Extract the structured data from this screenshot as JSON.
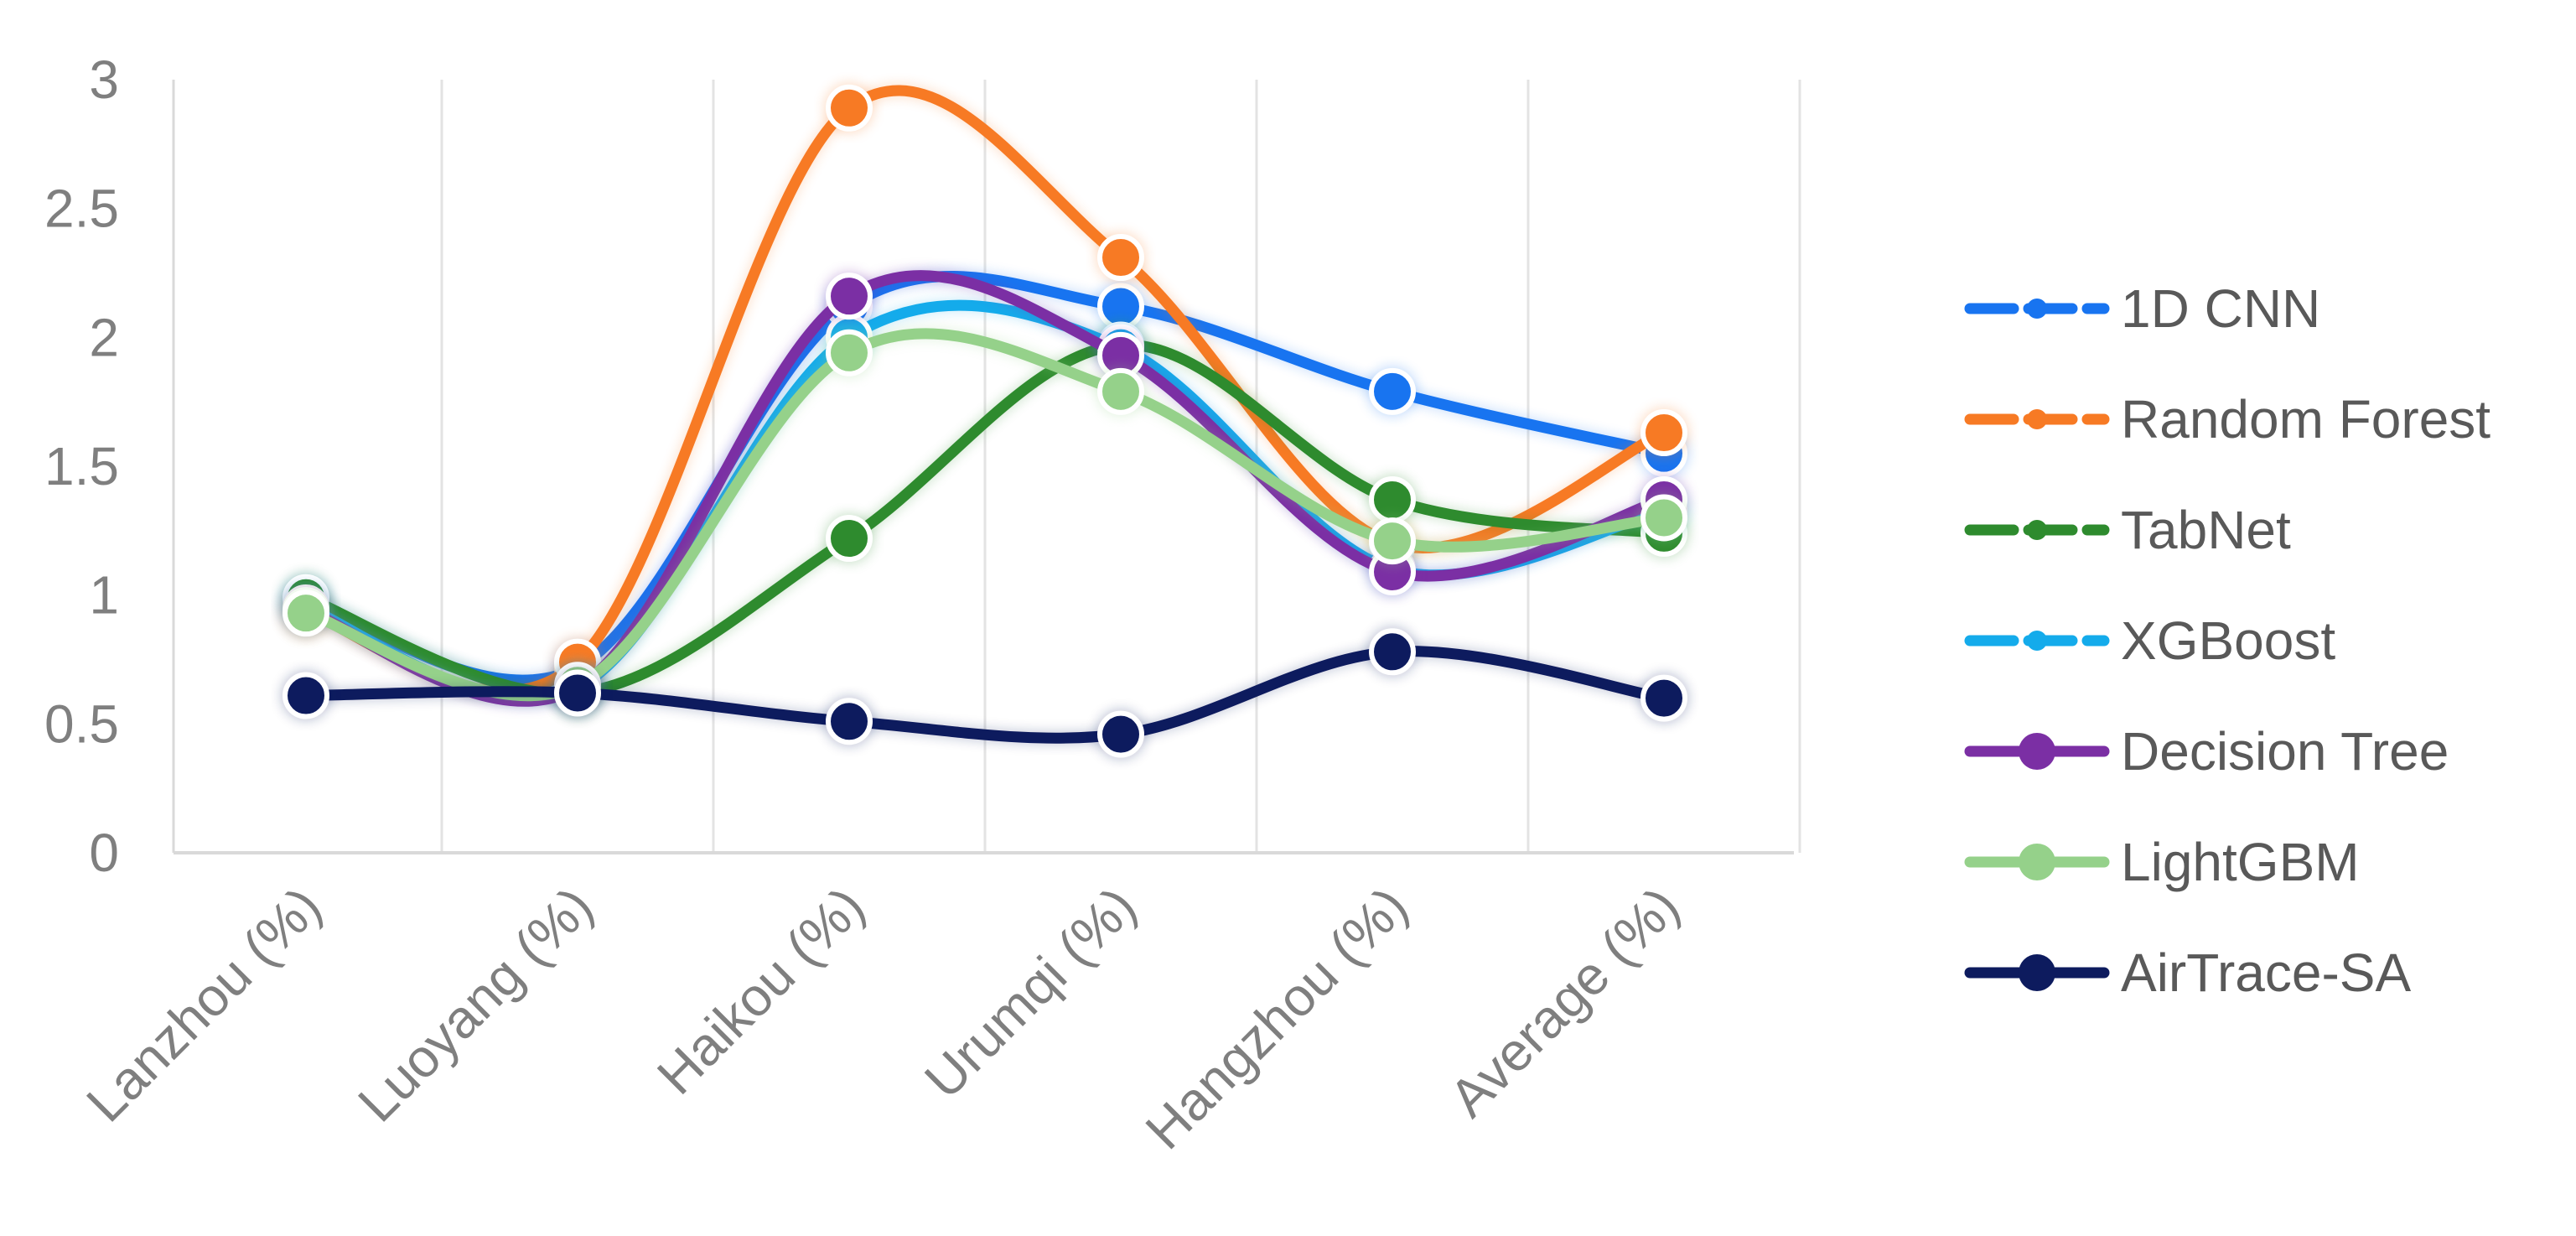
{
  "chart_data": {
    "type": "line",
    "title": "",
    "xlabel": "",
    "ylabel": "",
    "categories": [
      "Lanzhou (%)",
      "Luoyang (%)",
      "Haikou (%)",
      "Urumqi (%)",
      "Hangzhou (%)",
      "Average (%)"
    ],
    "ylim": [
      0,
      3
    ],
    "yticks": [
      "0",
      "0.5",
      "1",
      "1.5",
      "2",
      "2.5",
      "3"
    ],
    "ytick_values": [
      0,
      0.5,
      1,
      1.5,
      2,
      2.5,
      3
    ],
    "grid": "vertical",
    "legend_position": "right",
    "series": [
      {
        "name": "1D CNN",
        "color": "#1874F0",
        "dashed": true,
        "values": [
          0.98,
          0.72,
          2.12,
          2.12,
          1.79,
          1.55
        ]
      },
      {
        "name": "Random Forest",
        "color": "#F77A24",
        "dashed": true,
        "values": [
          0.93,
          0.74,
          2.89,
          2.31,
          1.2,
          1.63
        ]
      },
      {
        "name": "TabNet",
        "color": "#2E8B2E",
        "dashed": true,
        "values": [
          0.99,
          0.62,
          1.22,
          1.97,
          1.37,
          1.24
        ]
      },
      {
        "name": "XGBoost",
        "color": "#14ABEB",
        "dashed": true,
        "values": [
          0.95,
          0.64,
          2.0,
          1.96,
          1.1,
          1.33
        ]
      },
      {
        "name": "Decision Tree",
        "color": "#7B2FA4",
        "dashed": false,
        "values": [
          0.94,
          0.64,
          2.16,
          1.93,
          1.09,
          1.37
        ]
      },
      {
        "name": "LightGBM",
        "color": "#95D18A",
        "dashed": false,
        "values": [
          0.93,
          0.65,
          1.94,
          1.79,
          1.21,
          1.3
        ]
      },
      {
        "name": "AirTrace-SA",
        "color": "#0D1B5E",
        "dashed": false,
        "values": [
          0.61,
          0.62,
          0.51,
          0.46,
          0.78,
          0.6
        ]
      }
    ]
  }
}
